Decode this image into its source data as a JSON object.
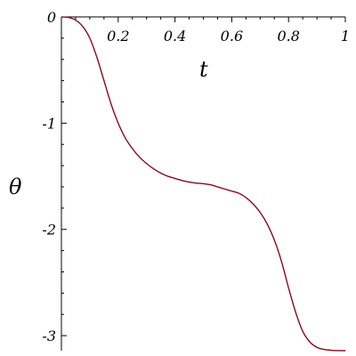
{
  "chart_data": {
    "type": "line",
    "title": "",
    "xlabel": "t",
    "ylabel": "θ",
    "xlim": [
      0,
      1
    ],
    "ylim": [
      -3.14159,
      0
    ],
    "grid": false,
    "x_ticks": [
      0.2,
      0.4,
      0.6,
      0.8,
      1
    ],
    "x_tick_labels": [
      "0.2",
      "0.4",
      "0.6",
      "0.8",
      "1"
    ],
    "y_ticks": [
      0,
      -1,
      -2,
      -3
    ],
    "y_tick_labels": [
      "0",
      "-1",
      "-2",
      "-3"
    ],
    "series": [
      {
        "color": "#8b0a1a",
        "x": [
          0,
          0.025,
          0.05,
          0.075,
          0.1,
          0.125,
          0.15,
          0.175,
          0.2,
          0.225,
          0.25,
          0.275,
          0.3,
          0.325,
          0.35,
          0.375,
          0.4,
          0.425,
          0.45,
          0.475,
          0.5,
          0.525,
          0.55,
          0.575,
          0.6,
          0.625,
          0.65,
          0.675,
          0.7,
          0.725,
          0.75,
          0.775,
          0.8,
          0.825,
          0.85,
          0.875,
          0.9,
          0.925,
          0.95,
          0.975,
          1
        ],
        "y": [
          0,
          -0.005,
          -0.03,
          -0.09,
          -0.2,
          -0.38,
          -0.6,
          -0.82,
          -1.0,
          -1.14,
          -1.24,
          -1.32,
          -1.38,
          -1.43,
          -1.47,
          -1.5,
          -1.52,
          -1.54,
          -1.555,
          -1.565,
          -1.57,
          -1.58,
          -1.6,
          -1.62,
          -1.64,
          -1.66,
          -1.7,
          -1.76,
          -1.84,
          -1.95,
          -2.1,
          -2.3,
          -2.55,
          -2.78,
          -2.96,
          -3.06,
          -3.11,
          -3.13,
          -3.138,
          -3.141,
          -3.14159
        ]
      }
    ]
  }
}
